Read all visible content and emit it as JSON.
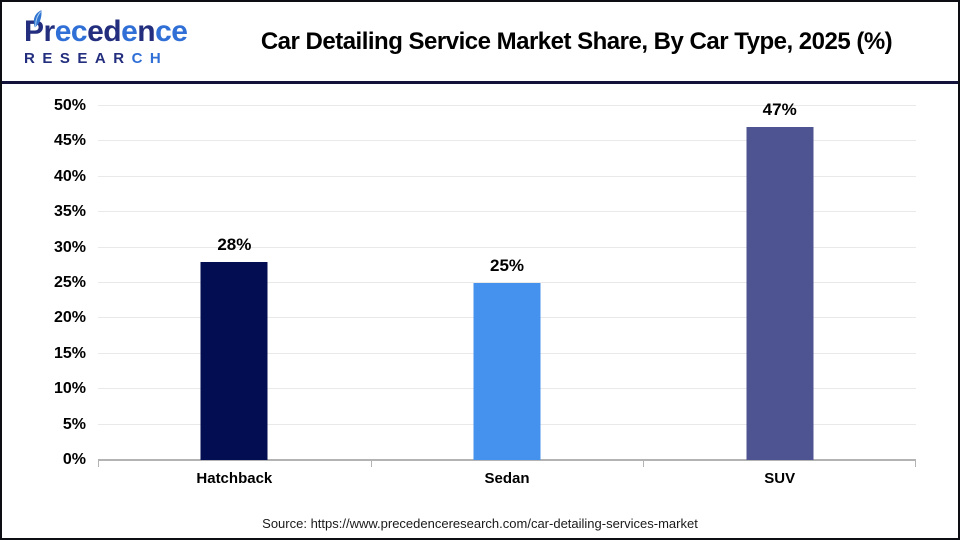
{
  "header": {
    "logo": {
      "word1": "Precedence",
      "word1_colors": [
        "navy",
        "navy",
        "blue",
        "blue",
        "navy",
        "navy",
        "blue",
        "navy",
        "blue",
        "blue"
      ],
      "word2": "RESEARCH",
      "word2_colors": [
        "navy",
        "navy",
        "navy",
        "navy",
        "navy",
        "navy",
        "blue",
        "blue"
      ],
      "navy": "#232e7e",
      "blue": "#2f6fd6"
    },
    "title": "Car Detailing Service Market Share, By Car Type, 2025 (%)"
  },
  "chart_data": {
    "type": "bar",
    "title": "Car Detailing Service Market Share, By Car Type, 2025 (%)",
    "categories": [
      "Hatchback",
      "Sedan",
      "SUV"
    ],
    "values": [
      28,
      25,
      47
    ],
    "data_labels": [
      "28%",
      "25%",
      "47%"
    ],
    "bar_colors": [
      "#030d52",
      "#4591ee",
      "#4d5491"
    ],
    "xlabel": "",
    "ylabel": "",
    "ylim": [
      0,
      50
    ],
    "ytick_step": 5,
    "ytick_labels": [
      "0%",
      "5%",
      "10%",
      "15%",
      "20%",
      "25%",
      "30%",
      "35%",
      "40%",
      "45%",
      "50%"
    ],
    "grid": "horizontal",
    "legend": "none"
  },
  "footer": {
    "source": "Source: https://www.precedenceresearch.com/car-detailing-services-market"
  }
}
